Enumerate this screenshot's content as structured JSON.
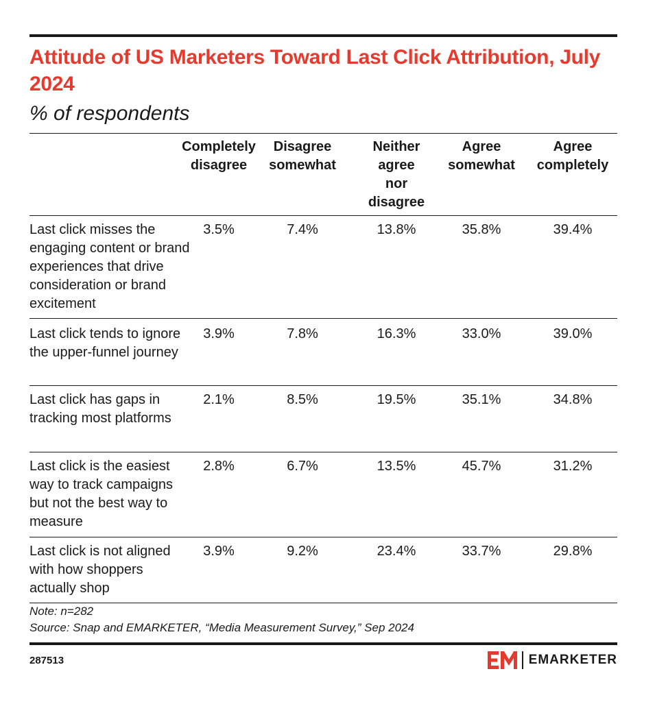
{
  "chart_data": {
    "type": "table",
    "title": "Attitude of US Marketers Toward Last Click Attribution, July 2024",
    "subtitle": "% of respondents",
    "columns": [
      "Completely\ndisagree",
      "Disagree\nsomewhat",
      "Neither\nagree\nnor\ndisagree",
      "Agree\nsomewhat",
      "Agree\ncompletely"
    ],
    "rows": [
      {
        "label": "Last click misses the engaging content or brand experiences that drive consideration or brand excitement",
        "values": [
          "3.5%",
          "7.4%",
          "13.8%",
          "35.8%",
          "39.4%"
        ]
      },
      {
        "label": "Last click tends to ignore the upper-funnel journey",
        "values": [
          "3.9%",
          "7.8%",
          "16.3%",
          "33.0%",
          "39.0%"
        ]
      },
      {
        "label": "Last click has gaps in tracking most platforms",
        "values": [
          "2.1%",
          "8.5%",
          "19.5%",
          "35.1%",
          "34.8%"
        ]
      },
      {
        "label": "Last click is the easiest way to track campaigns but not the best way to measure",
        "values": [
          "2.8%",
          "6.7%",
          "13.5%",
          "45.7%",
          "31.2%"
        ]
      },
      {
        "label": "Last click is not aligned with how shoppers actually shop",
        "values": [
          "3.9%",
          "9.2%",
          "23.4%",
          "33.7%",
          "29.8%"
        ]
      }
    ],
    "note": "Note: n=282",
    "source": "Source: Snap and EMARKETER, “Media Measurement Survey,” Sep 2024"
  },
  "footer": {
    "chart_id": "287513",
    "brand": "EMARKETER"
  },
  "colors": {
    "title": "#e63a2e",
    "text": "#1a1a1a",
    "logo": "#e63a2e"
  }
}
